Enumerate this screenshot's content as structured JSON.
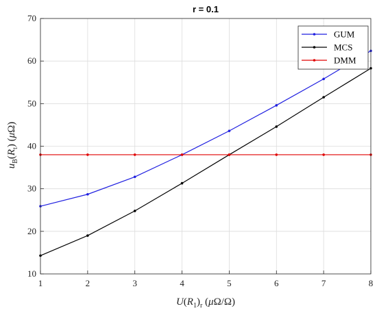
{
  "chart_data": {
    "type": "line",
    "title": "r = 0.1",
    "xlabel": "U(R1)r (μΩ/Ω)",
    "ylabel": "uB(Rt) (μΩ)",
    "xlim": [
      1,
      8
    ],
    "ylim": [
      10,
      70
    ],
    "xticks": [
      "1",
      "2",
      "3",
      "4",
      "5",
      "6",
      "7",
      "8"
    ],
    "yticks": [
      "10",
      "20",
      "30",
      "40",
      "50",
      "60",
      "70"
    ],
    "grid": true,
    "legend_position": "top-right",
    "x": [
      1,
      2,
      3,
      4,
      5,
      6,
      7,
      8
    ],
    "series": [
      {
        "name": "GUM",
        "color": "#1f1fe0",
        "values": [
          25.9,
          28.7,
          32.8,
          38.0,
          43.6,
          49.6,
          55.8,
          62.4
        ]
      },
      {
        "name": "MCS",
        "color": "#000000",
        "values": [
          14.3,
          19.0,
          24.8,
          31.3,
          38.0,
          44.6,
          51.5,
          58.3
        ]
      },
      {
        "name": "DMM",
        "color": "#e00000",
        "values": [
          38.0,
          38.0,
          38.0,
          38.0,
          38.0,
          38.0,
          38.0,
          38.0
        ]
      }
    ]
  }
}
